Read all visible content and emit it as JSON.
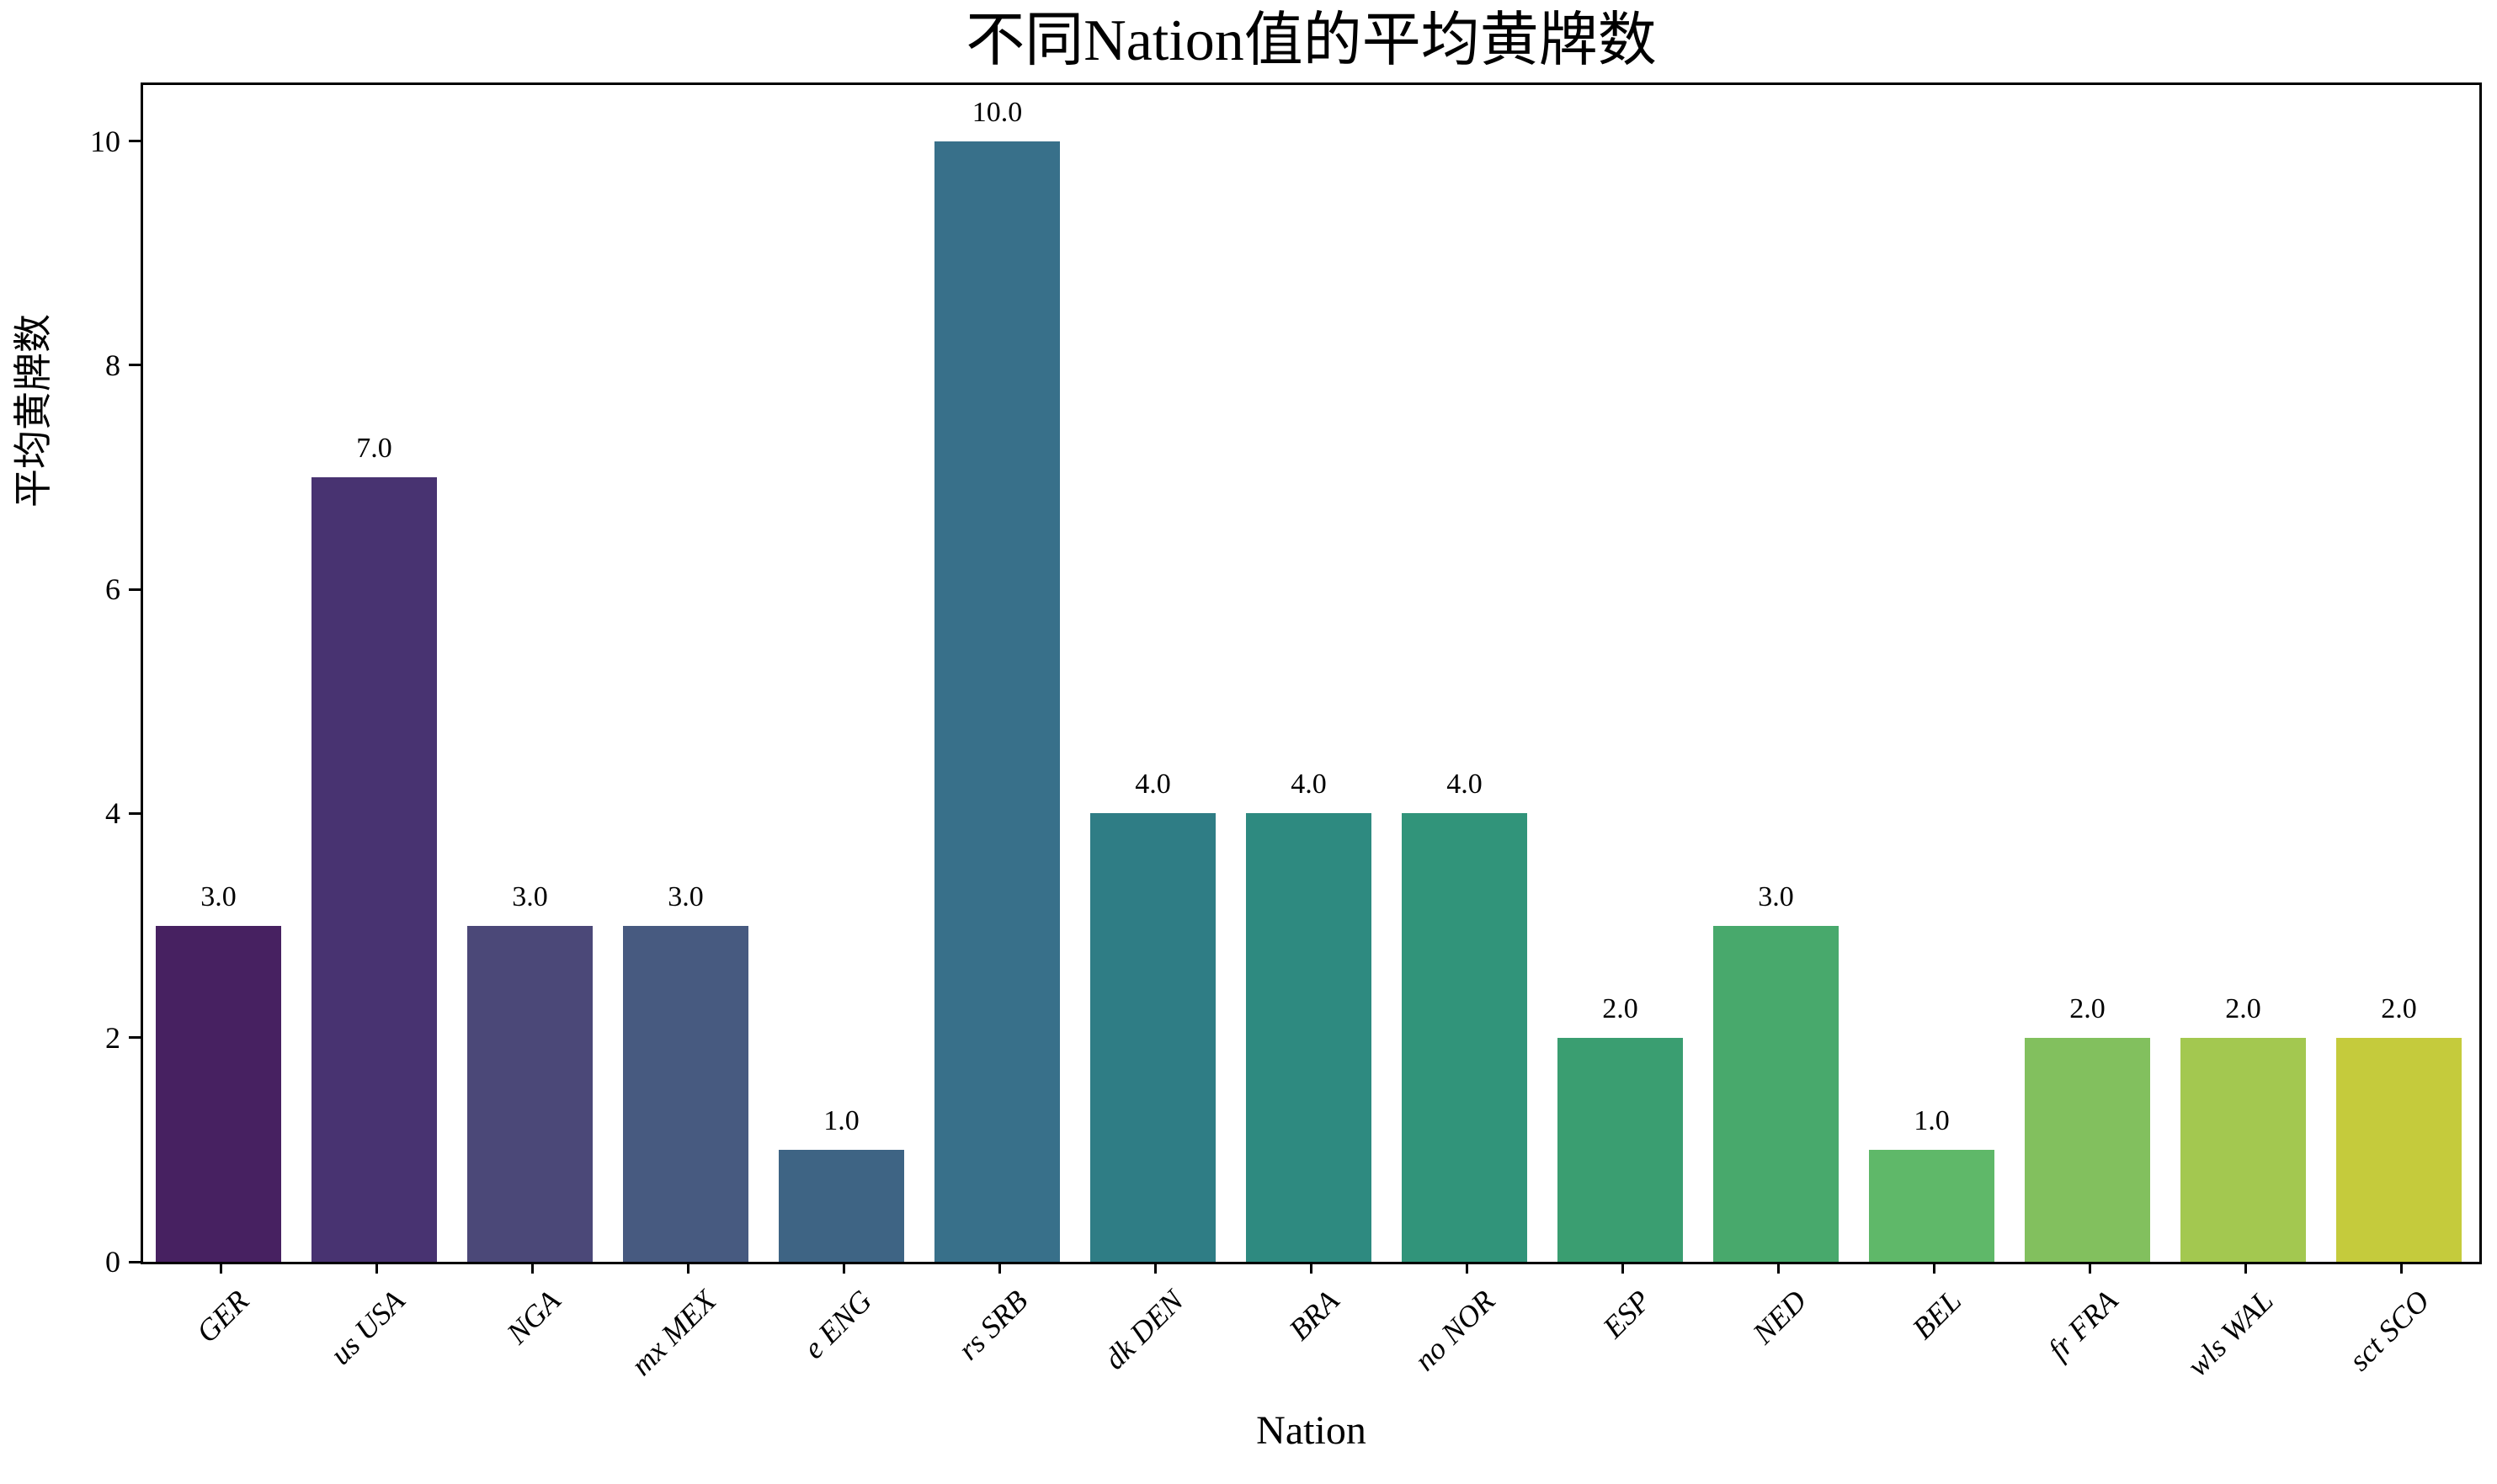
{
  "chart_data": {
    "type": "bar",
    "title": "不同Nation值的平均黄牌数",
    "xlabel": "Nation",
    "ylabel": "平均黄牌数",
    "categories": [
      "GER",
      "us USA",
      "NGA",
      "mx MEX",
      "e ENG",
      "rs SRB",
      "dk DEN",
      "BRA",
      "no NOR",
      "ESP",
      "NED",
      "BEL",
      "fr FRA",
      "wls WAL",
      "sct SCO"
    ],
    "values": [
      3.0,
      7.0,
      3.0,
      3.0,
      1.0,
      10.0,
      4.0,
      4.0,
      4.0,
      2.0,
      3.0,
      1.0,
      2.0,
      2.0,
      2.0
    ],
    "value_labels": [
      "3.0",
      "7.0",
      "3.0",
      "3.0",
      "1.0",
      "10.0",
      "4.0",
      "4.0",
      "4.0",
      "2.0",
      "3.0",
      "1.0",
      "2.0",
      "2.0",
      "2.0"
    ],
    "bar_colors": [
      "#472161",
      "#483371",
      "#4b4878",
      "#475a80",
      "#3e6484",
      "#38708a",
      "#2f7d85",
      "#2e8a80",
      "#31947a",
      "#3a9e71",
      "#48a96c",
      "#5fb869",
      "#82c05e",
      "#a3c850",
      "#c5cb3c"
    ],
    "ylim": [
      0,
      10.5
    ],
    "yticks": [
      0,
      2,
      4,
      6,
      8,
      10
    ],
    "ytick_labels": [
      "0",
      "2",
      "4",
      "6",
      "8",
      "10"
    ],
    "grid": false,
    "legend_position": "none",
    "axis_color": "#000000",
    "background_color": "#ffffff"
  }
}
